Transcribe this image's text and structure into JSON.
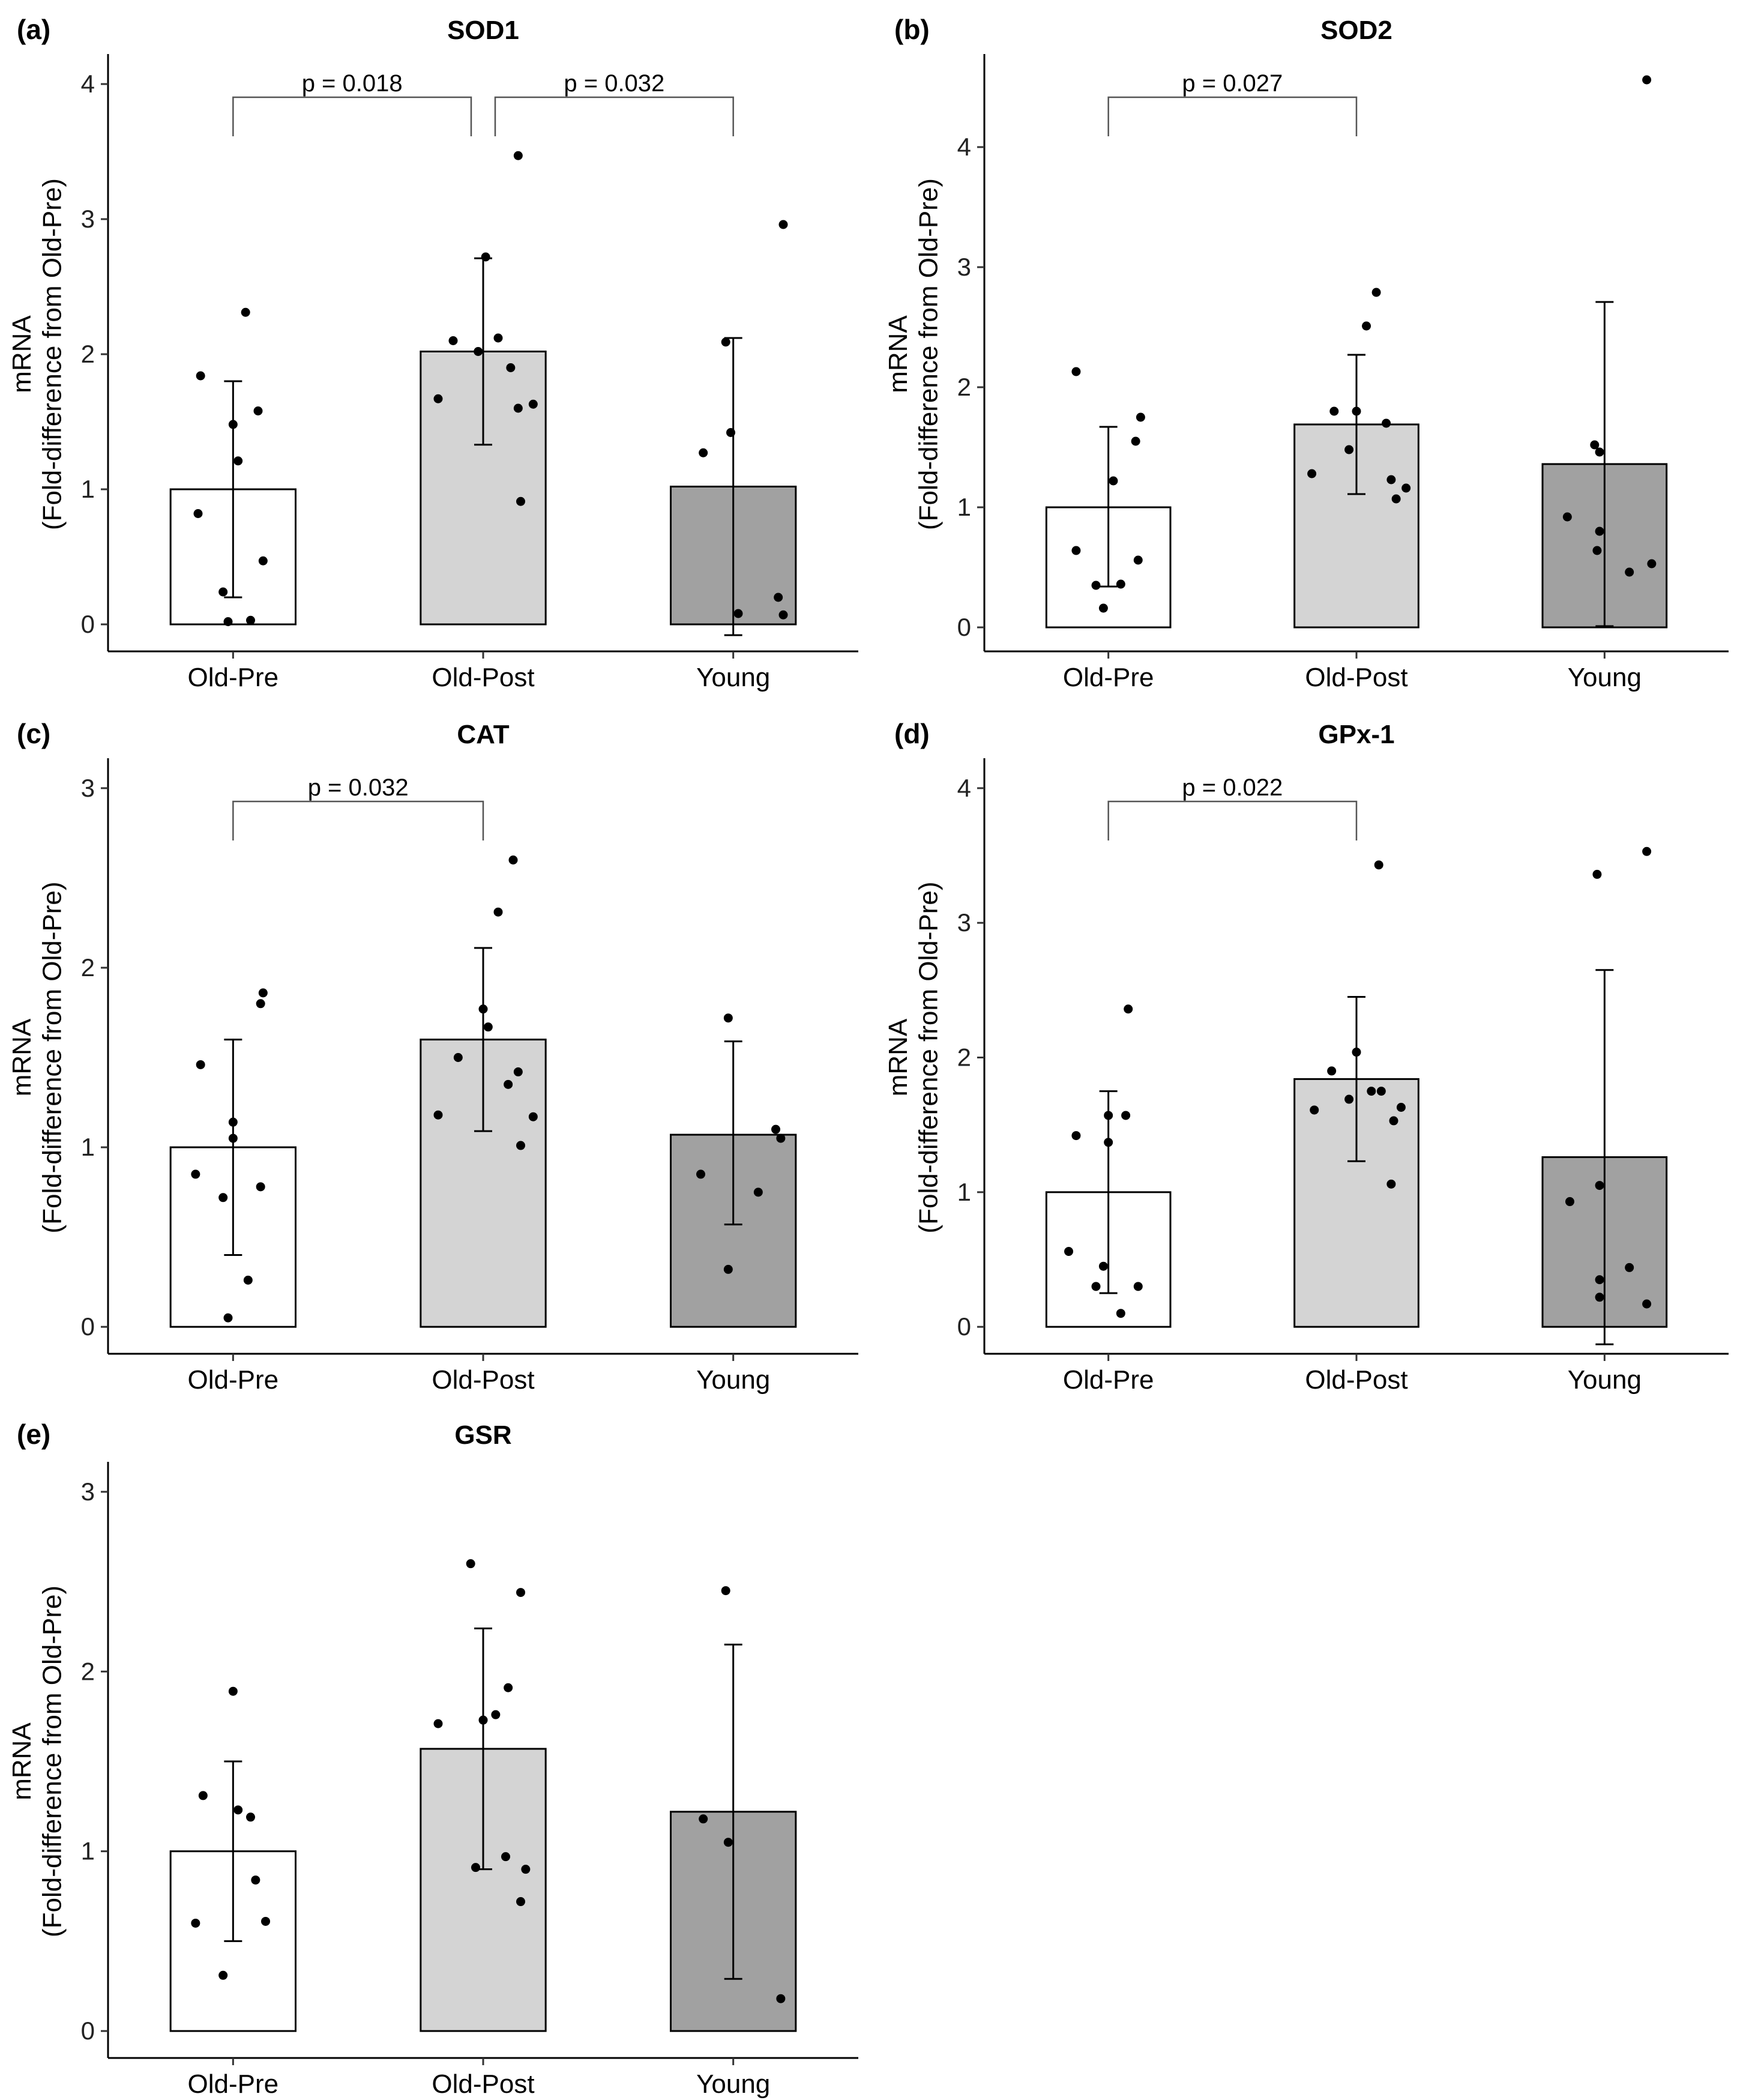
{
  "chart_data": [
    {
      "panel": "(a)",
      "title": "SOD1",
      "type": "bar",
      "categories": [
        "Old-Pre",
        "Old-Post",
        "Young"
      ],
      "bar_colors": [
        "#ffffff",
        "#d4d4d4",
        "#a1a1a1"
      ],
      "ylabel": [
        "mRNA",
        "(Fold-difference from Old-Pre)"
      ],
      "ylim": [
        -0.2,
        4.2
      ],
      "yticks": [
        0,
        1,
        2,
        3,
        4
      ],
      "means": [
        1.0,
        2.02,
        1.02
      ],
      "errors": [
        [
          0.2,
          1.8
        ],
        [
          1.33,
          2.71
        ],
        [
          -0.08,
          2.12
        ]
      ],
      "points": [
        [
          [
            -0.13,
            1.84
          ],
          [
            -0.14,
            0.82
          ],
          [
            0.05,
            2.31
          ],
          [
            0.0,
            1.48
          ],
          [
            0.02,
            1.21
          ],
          [
            0.1,
            1.58
          ],
          [
            0.12,
            0.47
          ],
          [
            -0.04,
            0.24
          ],
          [
            -0.02,
            0.02
          ],
          [
            0.07,
            0.03
          ]
        ],
        [
          [
            -0.12,
            2.1
          ],
          [
            -0.18,
            1.67
          ],
          [
            0.01,
            2.72
          ],
          [
            -0.02,
            2.02
          ],
          [
            0.06,
            2.12
          ],
          [
            0.11,
            1.9
          ],
          [
            0.14,
            1.6
          ],
          [
            0.2,
            1.63
          ],
          [
            0.15,
            0.91
          ],
          [
            0.14,
            3.47
          ]
        ],
        [
          [
            -0.12,
            1.27
          ],
          [
            -0.03,
            2.09
          ],
          [
            -0.01,
            1.42
          ],
          [
            0.02,
            0.08
          ],
          [
            0.18,
            0.2
          ],
          [
            0.2,
            0.07
          ],
          [
            0.2,
            2.96
          ]
        ]
      ],
      "comparisons": [
        {
          "from": 0,
          "to": 1,
          "label": "p = 0.018"
        },
        {
          "from": 1,
          "to": 2,
          "label": "p = 0.032"
        }
      ]
    },
    {
      "panel": "(b)",
      "title": "SOD2",
      "type": "bar",
      "categories": [
        "Old-Pre",
        "Old-Post",
        "Young"
      ],
      "bar_colors": [
        "#ffffff",
        "#d4d4d4",
        "#a1a1a1"
      ],
      "ylabel": [
        "mRNA",
        "(Fold-difference from Old-Pre)"
      ],
      "ylim": [
        -0.2,
        4.75
      ],
      "yticks": [
        0,
        1,
        2,
        3,
        4
      ],
      "means": [
        1.0,
        1.69,
        1.36
      ],
      "errors": [
        [
          0.34,
          1.67
        ],
        [
          1.11,
          2.27
        ],
        [
          0.01,
          2.71
        ]
      ],
      "points": [
        [
          [
            -0.13,
            0.64
          ],
          [
            -0.05,
            0.35
          ],
          [
            -0.02,
            0.16
          ],
          [
            0.05,
            0.36
          ],
          [
            0.12,
            0.56
          ],
          [
            -0.13,
            2.13
          ],
          [
            0.13,
            1.75
          ],
          [
            0.11,
            1.55
          ],
          [
            0.02,
            1.22
          ]
        ],
        [
          [
            -0.18,
            1.28
          ],
          [
            -0.09,
            1.8
          ],
          [
            0.04,
            2.51
          ],
          [
            0.0,
            1.8
          ],
          [
            -0.03,
            1.48
          ],
          [
            0.12,
            1.7
          ],
          [
            0.08,
            2.79
          ],
          [
            0.14,
            1.23
          ],
          [
            0.2,
            1.16
          ],
          [
            0.16,
            1.07
          ]
        ],
        [
          [
            -0.15,
            0.92
          ],
          [
            -0.04,
            1.52
          ],
          [
            -0.02,
            1.46
          ],
          [
            -0.02,
            0.8
          ],
          [
            -0.03,
            0.64
          ],
          [
            0.1,
            0.46
          ],
          [
            0.19,
            0.53
          ],
          [
            0.17,
            4.56
          ]
        ]
      ],
      "comparisons": [
        {
          "from": 0,
          "to": 1,
          "label": "p = 0.027"
        }
      ]
    },
    {
      "panel": "(c)",
      "title": "CAT",
      "type": "bar",
      "categories": [
        "Old-Pre",
        "Old-Post",
        "Young"
      ],
      "bar_colors": [
        "#ffffff",
        "#d4d4d4",
        "#a1a1a1"
      ],
      "ylabel": [
        "mRNA",
        "(Fold-difference from Old-Pre)"
      ],
      "ylim": [
        -0.15,
        3.15
      ],
      "yticks": [
        0,
        1,
        2,
        3
      ],
      "means": [
        1.0,
        1.6,
        1.07
      ],
      "errors": [
        [
          0.4,
          1.6
        ],
        [
          1.09,
          2.11
        ],
        [
          0.57,
          1.59
        ]
      ],
      "points": [
        [
          [
            -0.13,
            1.46
          ],
          [
            -0.15,
            0.85
          ],
          [
            -0.04,
            0.72
          ],
          [
            0.0,
            1.14
          ],
          [
            0.0,
            1.05
          ],
          [
            0.12,
            1.86
          ],
          [
            0.11,
            1.8
          ],
          [
            0.11,
            0.78
          ],
          [
            0.06,
            0.26
          ],
          [
            -0.02,
            0.05
          ]
        ],
        [
          [
            -0.18,
            1.18
          ],
          [
            -0.1,
            1.5
          ],
          [
            0.0,
            1.77
          ],
          [
            0.02,
            1.67
          ],
          [
            0.06,
            2.31
          ],
          [
            0.12,
            2.6
          ],
          [
            0.1,
            1.35
          ],
          [
            0.14,
            1.42
          ],
          [
            0.2,
            1.17
          ],
          [
            0.15,
            1.01
          ]
        ],
        [
          [
            -0.13,
            0.85
          ],
          [
            -0.02,
            1.72
          ],
          [
            -0.02,
            0.32
          ],
          [
            0.1,
            0.75
          ],
          [
            0.17,
            1.1
          ],
          [
            0.19,
            1.05
          ]
        ]
      ],
      "comparisons": [
        {
          "from": 0,
          "to": 1,
          "label": "p = 0.032"
        }
      ]
    },
    {
      "panel": "(d)",
      "title": "GPx-1",
      "type": "bar",
      "categories": [
        "Old-Pre",
        "Old-Post",
        "Young"
      ],
      "bar_colors": [
        "#ffffff",
        "#d4d4d4",
        "#a1a1a1"
      ],
      "ylabel": [
        "mRNA",
        "(Fold-difference from Old-Pre)"
      ],
      "ylim": [
        -0.2,
        4.2
      ],
      "yticks": [
        0,
        1,
        2,
        3,
        4
      ],
      "means": [
        1.0,
        1.84,
        1.26
      ],
      "errors": [
        [
          0.25,
          1.75
        ],
        [
          1.23,
          2.45
        ],
        [
          -0.13,
          2.65
        ]
      ],
      "points": [
        [
          [
            -0.16,
            0.56
          ],
          [
            -0.13,
            1.42
          ],
          [
            -0.05,
            0.3
          ],
          [
            -0.02,
            0.45
          ],
          [
            0.0,
            1.57
          ],
          [
            0.0,
            1.37
          ],
          [
            0.05,
            0.1
          ],
          [
            0.07,
            1.57
          ],
          [
            0.08,
            2.36
          ],
          [
            0.12,
            0.3
          ]
        ],
        [
          [
            -0.17,
            1.61
          ],
          [
            -0.1,
            1.9
          ],
          [
            -0.03,
            1.69
          ],
          [
            0.0,
            2.04
          ],
          [
            0.06,
            1.75
          ],
          [
            0.1,
            1.75
          ],
          [
            0.15,
            1.53
          ],
          [
            0.18,
            1.63
          ],
          [
            0.14,
            1.06
          ],
          [
            0.09,
            3.43
          ]
        ],
        [
          [
            -0.14,
            0.93
          ],
          [
            -0.03,
            3.36
          ],
          [
            -0.02,
            1.05
          ],
          [
            -0.02,
            0.35
          ],
          [
            -0.02,
            0.22
          ],
          [
            0.1,
            0.44
          ],
          [
            0.17,
            0.17
          ],
          [
            0.17,
            3.53
          ]
        ]
      ],
      "comparisons": [
        {
          "from": 0,
          "to": 1,
          "label": "p = 0.022"
        }
      ]
    },
    {
      "panel": "(e)",
      "title": "GSR",
      "type": "bar",
      "categories": [
        "Old-Pre",
        "Old-Post",
        "Young"
      ],
      "bar_colors": [
        "#ffffff",
        "#d4d4d4",
        "#a1a1a1"
      ],
      "ylabel": [
        "mRNA",
        "(Fold-difference from Old-Pre)"
      ],
      "ylim": [
        -0.15,
        3.15
      ],
      "yticks": [
        0,
        1,
        2,
        3
      ],
      "means": [
        1.0,
        1.57,
        1.22
      ],
      "errors": [
        [
          0.5,
          1.5
        ],
        [
          0.9,
          2.24
        ],
        [
          0.29,
          2.15
        ]
      ],
      "points": [
        [
          [
            -0.15,
            0.6
          ],
          [
            -0.12,
            1.31
          ],
          [
            -0.04,
            0.31
          ],
          [
            0.02,
            1.23
          ],
          [
            0.0,
            1.89
          ],
          [
            0.07,
            1.19
          ],
          [
            0.09,
            0.84
          ],
          [
            0.13,
            0.61
          ]
        ],
        [
          [
            -0.18,
            1.71
          ],
          [
            -0.05,
            2.6
          ],
          [
            -0.03,
            0.91
          ],
          [
            0.0,
            1.73
          ],
          [
            0.05,
            1.76
          ],
          [
            0.1,
            1.91
          ],
          [
            0.09,
            0.97
          ],
          [
            0.15,
            0.72
          ],
          [
            0.17,
            0.9
          ],
          [
            0.15,
            2.44
          ]
        ],
        [
          [
            -0.12,
            1.18
          ],
          [
            -0.03,
            2.45
          ],
          [
            -0.02,
            1.05
          ],
          [
            0.19,
            0.18
          ]
        ]
      ],
      "comparisons": []
    }
  ]
}
